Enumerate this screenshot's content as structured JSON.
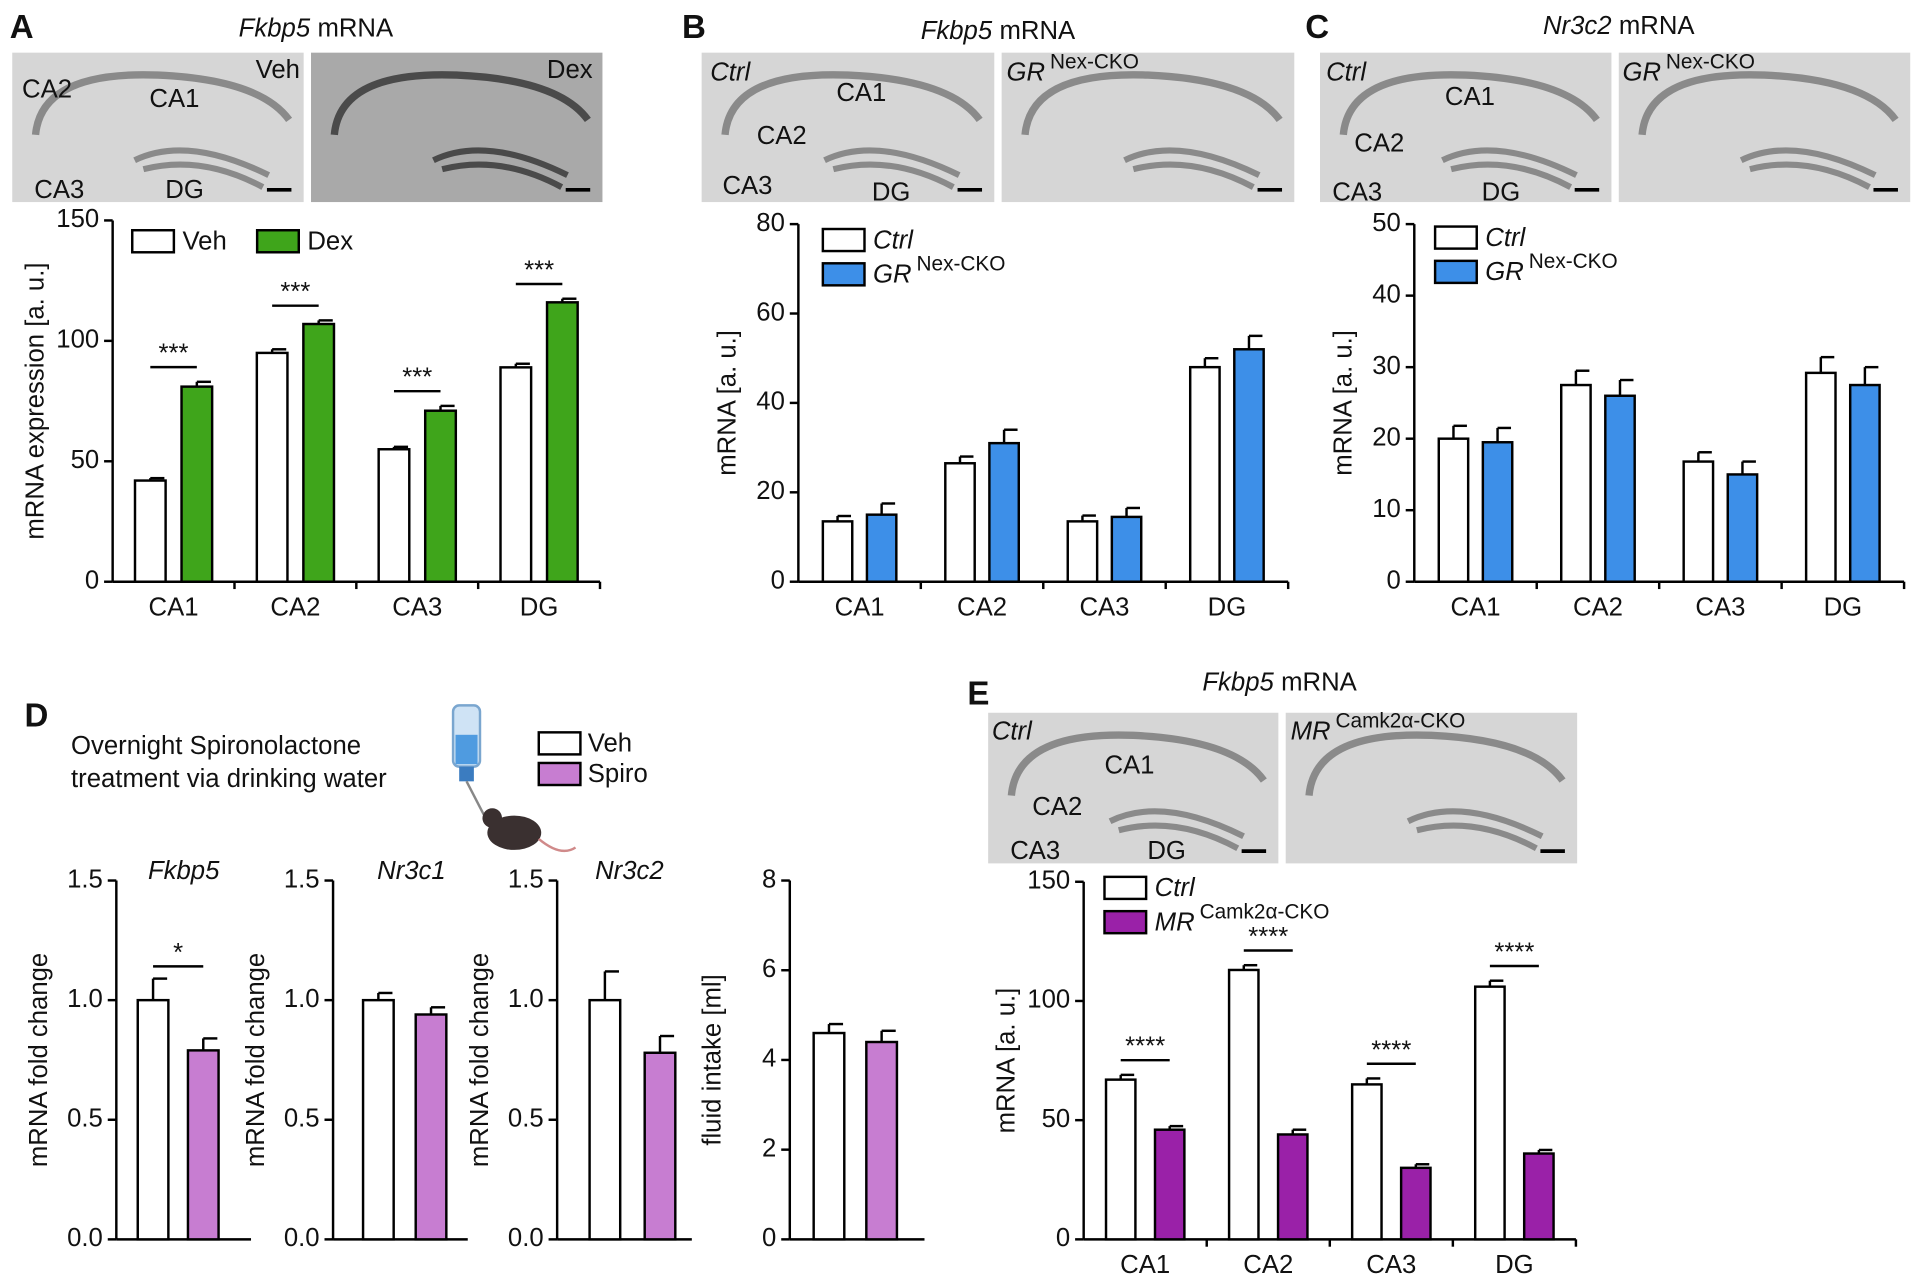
{
  "chart_data": [
    {
      "type": "bar",
      "panel": "A",
      "title": [
        "Fkbp5",
        "mRNA"
      ],
      "image_conditions": [
        {
          "name": "Veh"
        },
        {
          "name": "Dex"
        }
      ],
      "image_labels": [
        "CA2",
        "CA1",
        "CA3",
        "DG"
      ],
      "ylabel": "mRNA expression [a. u.]",
      "categories": [
        "CA1",
        "CA2",
        "CA3",
        "DG"
      ],
      "ylim": [
        0,
        150
      ],
      "yticks": [
        0,
        50,
        100,
        150
      ],
      "legend_italic": false,
      "series": [
        {
          "name": "Veh",
          "color": "#ffffff",
          "values": [
            42,
            95,
            55,
            89
          ],
          "errors": [
            1,
            1.5,
            1,
            1.5
          ]
        },
        {
          "name": "Dex",
          "color": "#3fa51b",
          "values": [
            81,
            107,
            71,
            116
          ],
          "errors": [
            2,
            1.5,
            2,
            1.5
          ]
        }
      ],
      "annotations": [
        "***",
        "***",
        "***",
        "***"
      ]
    },
    {
      "type": "bar",
      "panel": "B",
      "title": [
        "Fkbp5",
        "mRNA"
      ],
      "image_conditions": [
        {
          "name": "Ctrl"
        },
        {
          "name": "GR",
          "sup": "Nex-CKO"
        }
      ],
      "image_labels": [
        "CA1",
        "CA2",
        "CA3",
        "DG"
      ],
      "ylabel": "mRNA [a. u.]",
      "categories": [
        "CA1",
        "CA2",
        "CA3",
        "DG"
      ],
      "ylim": [
        0,
        80
      ],
      "yticks": [
        0,
        20,
        40,
        60,
        80
      ],
      "legend_italic": true,
      "series": [
        {
          "name": "Ctrl",
          "color": "#ffffff",
          "values": [
            13.5,
            26.5,
            13.5,
            48
          ],
          "errors": [
            1.2,
            1.5,
            1.3,
            2
          ]
        },
        {
          "name": "GR",
          "sup": "Nex-CKO",
          "color": "#3d8fe8",
          "values": [
            15,
            31,
            14.5,
            52
          ],
          "errors": [
            2.5,
            3,
            2,
            3
          ]
        }
      ]
    },
    {
      "type": "bar",
      "panel": "C",
      "title": [
        "Nr3c2",
        "mRNA"
      ],
      "image_conditions": [
        {
          "name": "Ctrl"
        },
        {
          "name": "GR",
          "sup": "Nex-CKO"
        }
      ],
      "image_labels": [
        "CA1",
        "CA2",
        "CA3",
        "DG"
      ],
      "ylabel": "mRNA [a. u.]",
      "categories": [
        "CA1",
        "CA2",
        "CA3",
        "DG"
      ],
      "ylim": [
        0,
        50
      ],
      "yticks": [
        0,
        10,
        20,
        30,
        40,
        50
      ],
      "legend_italic": true,
      "series": [
        {
          "name": "Ctrl",
          "color": "#ffffff",
          "values": [
            20,
            27.5,
            16.8,
            29.2
          ],
          "errors": [
            1.8,
            2,
            1.3,
            2.2
          ]
        },
        {
          "name": "GR",
          "sup": "Nex-CKO",
          "color": "#3d8fe8",
          "values": [
            19.5,
            26,
            15,
            27.5
          ],
          "errors": [
            2,
            2.2,
            1.8,
            2.5
          ]
        }
      ]
    },
    {
      "type": "bar_panel",
      "panel": "D",
      "text": [
        "Overnight Spironolactone",
        "treatment via drinking water"
      ],
      "series": [
        {
          "name": "Veh",
          "color": "#ffffff"
        },
        {
          "name": "Spiro",
          "color": "#c77dd1"
        }
      ],
      "subplots": [
        {
          "title": "Fkbp5",
          "ylabel": "mRNA fold change",
          "ylim": [
            0,
            1.5
          ],
          "yticks": [
            {
              "value": 0,
              "label": "0.0"
            },
            0.5,
            {
              "value": 1,
              "label": "1.0"
            },
            1.5
          ],
          "values": [
            1.0,
            0.79
          ],
          "errors": [
            0.09,
            0.05
          ],
          "annotation": "*"
        },
        {
          "title": "Nr3c1",
          "ylabel": "mRNA fold change",
          "ylim": [
            0,
            1.5
          ],
          "yticks": [
            {
              "value": 0,
              "label": "0.0"
            },
            0.5,
            {
              "value": 1,
              "label": "1.0"
            },
            1.5
          ],
          "values": [
            1.0,
            0.94
          ],
          "errors": [
            0.03,
            0.03
          ]
        },
        {
          "title": "Nr3c2",
          "ylabel": "mRNA fold change",
          "ylim": [
            0,
            1.5
          ],
          "yticks": [
            {
              "value": 0,
              "label": "0.0"
            },
            0.5,
            {
              "value": 1,
              "label": "1.0"
            },
            1.5
          ],
          "values": [
            1.0,
            0.78
          ],
          "errors": [
            0.12,
            0.07
          ]
        },
        {
          "ylabel": "fluid intake [ml]",
          "ylim": [
            0,
            8
          ],
          "yticks": [
            0,
            2,
            4,
            6,
            8
          ],
          "values": [
            4.6,
            4.4
          ],
          "errors": [
            0.2,
            0.25
          ]
        }
      ]
    },
    {
      "type": "bar",
      "panel": "E",
      "title": [
        "Fkbp5",
        "mRNA"
      ],
      "image_conditions": [
        {
          "name": "Ctrl"
        },
        {
          "name": "MR",
          "sup": "Camk2α-CKO"
        }
      ],
      "image_labels": [
        "CA1",
        "CA2",
        "CA3",
        "DG"
      ],
      "ylabel": "mRNA [a. u.]",
      "categories": [
        "CA1",
        "CA2",
        "CA3",
        "DG"
      ],
      "ylim": [
        0,
        150
      ],
      "yticks": [
        0,
        50,
        100,
        150
      ],
      "legend_italic": true,
      "series": [
        {
          "name": "Ctrl",
          "color": "#ffffff",
          "values": [
            67,
            113,
            65,
            106
          ],
          "errors": [
            2,
            2,
            2.5,
            2.5
          ]
        },
        {
          "name": "MR",
          "sup": "Camk2α-CKO",
          "color": "#9a21a8",
          "values": [
            46,
            44,
            30,
            36
          ],
          "errors": [
            1.5,
            2,
            1.5,
            1.5
          ]
        }
      ],
      "annotations": [
        "****",
        "****",
        "****",
        "****"
      ]
    }
  ]
}
